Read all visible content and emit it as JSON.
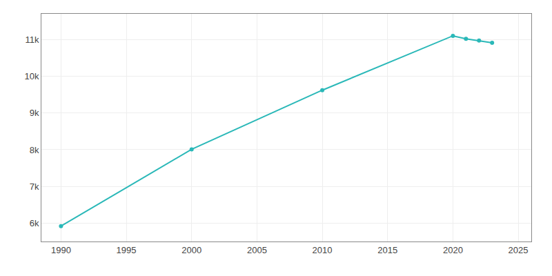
{
  "chart_data": {
    "type": "line",
    "x": [
      1990,
      2000,
      2010,
      2020,
      2021,
      2022,
      2023
    ],
    "values": [
      5920,
      8010,
      9620,
      11100,
      11020,
      10970,
      10910
    ],
    "color": "#2ab8b8",
    "marker": "circle",
    "xlim": [
      1988.5,
      2026
    ],
    "ylim": [
      5500,
      11700
    ],
    "xticks": [
      1990,
      1995,
      2000,
      2005,
      2010,
      2015,
      2020,
      2025
    ],
    "yticks": [
      {
        "value": 6000,
        "label": "6k"
      },
      {
        "value": 7000,
        "label": "7k"
      },
      {
        "value": 8000,
        "label": "8k"
      },
      {
        "value": 9000,
        "label": "9k"
      },
      {
        "value": 10000,
        "label": "10k"
      },
      {
        "value": 11000,
        "label": "11k"
      }
    ],
    "grid": true
  }
}
